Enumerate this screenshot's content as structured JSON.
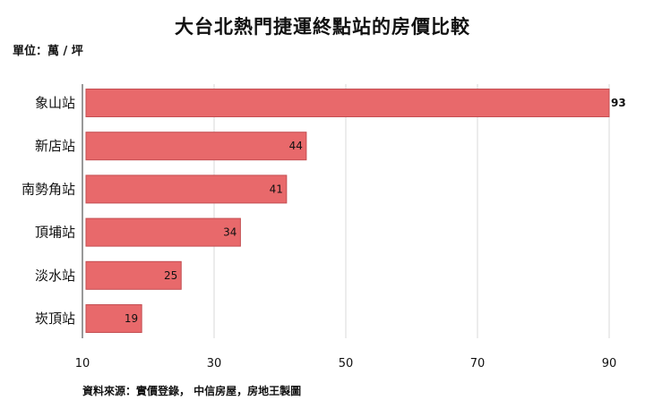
{
  "header": {
    "title": "大台北熱門捷運終點站的房價比較",
    "unit": "單位：萬 / 坪"
  },
  "footer": {
    "source": "資料來源：實價登錄， 中信房屋，房地王製圖"
  },
  "colors": {
    "bar_fill": "#e8696b",
    "bar_stroke": "#c44e52",
    "grid": "#d9d9d9",
    "axis": "#555555",
    "outside_label": "#b8262d"
  },
  "chart_data": {
    "type": "bar",
    "orientation": "horizontal",
    "title": "大台北熱門捷運終點站的房價比較",
    "unit": "單位：萬 / 坪",
    "categories": [
      "象山站",
      "新店站",
      "南勢角站",
      "頂埔站",
      "淡水站",
      "崁頂站"
    ],
    "values": [
      93,
      44,
      41,
      34,
      25,
      19
    ],
    "xlim": [
      10,
      90
    ],
    "xticks": [
      10,
      30,
      50,
      70,
      90
    ],
    "grid": true,
    "data_labels": true
  }
}
